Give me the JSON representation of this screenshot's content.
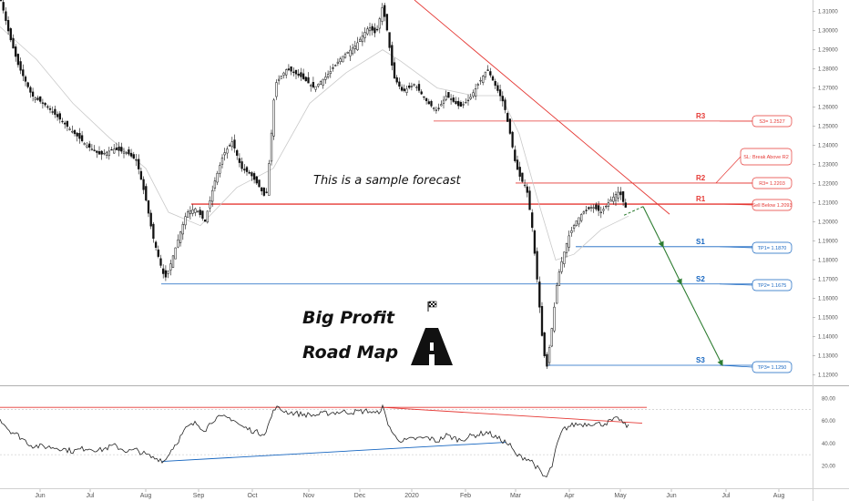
{
  "chart_data": {
    "type": "candlestick",
    "x_axis": {
      "tick_labels": [
        "Jun",
        "Jul",
        "Aug",
        "Sep",
        "Oct",
        "Nov",
        "Dec",
        "2020",
        "Feb",
        "Mar",
        "Apr",
        "May",
        "Jun",
        "Jul",
        "Aug"
      ]
    },
    "price_axis": {
      "ylim": [
        1.115,
        1.316
      ],
      "tick_labels": [
        "1.31000",
        "1.30000",
        "1.29000",
        "1.28000",
        "1.27000",
        "1.26000",
        "1.25000",
        "1.24000",
        "1.23000",
        "1.22000",
        "1.21000",
        "1.20000",
        "1.19000",
        "1.18000",
        "1.17000",
        "1.16000",
        "1.15000",
        "1.14000",
        "1.13000",
        "1.12000"
      ]
    },
    "oscillator_axis": {
      "ylim": [
        5,
        90
      ],
      "tick_labels": [
        "80.00",
        "60.00",
        "40.00",
        "20.00"
      ],
      "reference_levels": [
        70,
        30
      ]
    },
    "price_path": [
      [
        0,
        1.318
      ],
      [
        10,
        1.298
      ],
      [
        20,
        1.282
      ],
      [
        35,
        1.266
      ],
      [
        50,
        1.261
      ],
      [
        65,
        1.254
      ],
      [
        80,
        1.247
      ],
      [
        95,
        1.24
      ],
      [
        110,
        1.235
      ],
      [
        125,
        1.238
      ],
      [
        140,
        1.236
      ],
      [
        150,
        1.232
      ],
      [
        160,
        1.212
      ],
      [
        168,
        1.192
      ],
      [
        176,
        1.178
      ],
      [
        181,
        1.17
      ],
      [
        186,
        1.176
      ],
      [
        195,
        1.19
      ],
      [
        205,
        1.205
      ],
      [
        215,
        1.207
      ],
      [
        225,
        1.2
      ],
      [
        235,
        1.22
      ],
      [
        245,
        1.235
      ],
      [
        255,
        1.242
      ],
      [
        265,
        1.228
      ],
      [
        275,
        1.225
      ],
      [
        285,
        1.218
      ],
      [
        292,
        1.212
      ],
      [
        297,
        1.24
      ],
      [
        302,
        1.272
      ],
      [
        315,
        1.28
      ],
      [
        330,
        1.276
      ],
      [
        345,
        1.27
      ],
      [
        360,
        1.277
      ],
      [
        375,
        1.286
      ],
      [
        390,
        1.292
      ],
      [
        405,
        1.302
      ],
      [
        413,
        1.298
      ],
      [
        420,
        1.313
      ],
      [
        425,
        1.3
      ],
      [
        432,
        1.276
      ],
      [
        442,
        1.268
      ],
      [
        455,
        1.272
      ],
      [
        470,
        1.262
      ],
      [
        480,
        1.258
      ],
      [
        490,
        1.266
      ],
      [
        505,
        1.26
      ],
      [
        515,
        1.264
      ],
      [
        525,
        1.272
      ],
      [
        535,
        1.28
      ],
      [
        545,
        1.27
      ],
      [
        553,
        1.262
      ],
      [
        560,
        1.246
      ],
      [
        566,
        1.23
      ],
      [
        572,
        1.222
      ],
      [
        578,
        1.218
      ],
      [
        584,
        1.198
      ],
      [
        590,
        1.168
      ],
      [
        596,
        1.135
      ],
      [
        600,
        1.123
      ],
      [
        606,
        1.145
      ],
      [
        612,
        1.17
      ],
      [
        618,
        1.182
      ],
      [
        624,
        1.192
      ],
      [
        632,
        1.2
      ],
      [
        640,
        1.205
      ],
      [
        650,
        1.208
      ],
      [
        660,
        1.205
      ],
      [
        668,
        1.21
      ],
      [
        675,
        1.214
      ],
      [
        680,
        1.216
      ],
      [
        686,
        1.208
      ],
      [
        690,
        1.206
      ]
    ],
    "oscillator_path": [
      [
        0,
        62
      ],
      [
        10,
        52
      ],
      [
        20,
        47
      ],
      [
        35,
        38
      ],
      [
        50,
        37
      ],
      [
        65,
        36
      ],
      [
        80,
        33
      ],
      [
        95,
        36
      ],
      [
        110,
        34
      ],
      [
        125,
        38
      ],
      [
        140,
        33
      ],
      [
        150,
        34
      ],
      [
        160,
        30
      ],
      [
        168,
        27
      ],
      [
        176,
        26
      ],
      [
        181,
        24
      ],
      [
        186,
        32
      ],
      [
        195,
        42
      ],
      [
        205,
        54
      ],
      [
        215,
        58
      ],
      [
        225,
        52
      ],
      [
        235,
        62
      ],
      [
        245,
        63
      ],
      [
        255,
        62
      ],
      [
        265,
        55
      ],
      [
        275,
        52
      ],
      [
        285,
        49
      ],
      [
        292,
        50
      ],
      [
        297,
        62
      ],
      [
        302,
        72
      ],
      [
        315,
        68
      ],
      [
        330,
        66
      ],
      [
        345,
        65
      ],
      [
        360,
        67
      ],
      [
        375,
        68
      ],
      [
        390,
        68
      ],
      [
        405,
        69
      ],
      [
        413,
        66
      ],
      [
        420,
        72
      ],
      [
        425,
        60
      ],
      [
        432,
        47
      ],
      [
        442,
        42
      ],
      [
        455,
        44
      ],
      [
        470,
        45
      ],
      [
        480,
        42
      ],
      [
        490,
        47
      ],
      [
        505,
        43
      ],
      [
        515,
        46
      ],
      [
        525,
        48
      ],
      [
        535,
        50
      ],
      [
        545,
        45
      ],
      [
        553,
        42
      ],
      [
        560,
        38
      ],
      [
        566,
        30
      ],
      [
        572,
        28
      ],
      [
        578,
        27
      ],
      [
        584,
        24
      ],
      [
        590,
        18
      ],
      [
        596,
        11
      ],
      [
        600,
        10
      ],
      [
        606,
        20
      ],
      [
        612,
        40
      ],
      [
        618,
        52
      ],
      [
        624,
        55
      ],
      [
        632,
        57
      ],
      [
        640,
        57
      ],
      [
        650,
        58
      ],
      [
        660,
        57
      ],
      [
        668,
        59
      ],
      [
        675,
        61
      ],
      [
        680,
        62
      ],
      [
        686,
        56
      ],
      [
        690,
        55
      ]
    ],
    "ma_path": [
      [
        0,
        1.302
      ],
      [
        40,
        1.285
      ],
      [
        80,
        1.262
      ],
      [
        120,
        1.244
      ],
      [
        160,
        1.228
      ],
      [
        185,
        1.205
      ],
      [
        220,
        1.198
      ],
      [
        260,
        1.218
      ],
      [
        300,
        1.228
      ],
      [
        340,
        1.262
      ],
      [
        380,
        1.278
      ],
      [
        420,
        1.29
      ],
      [
        440,
        1.284
      ],
      [
        480,
        1.27
      ],
      [
        520,
        1.266
      ],
      [
        550,
        1.266
      ],
      [
        570,
        1.246
      ],
      [
        590,
        1.212
      ],
      [
        610,
        1.18
      ],
      [
        630,
        1.183
      ],
      [
        660,
        1.196
      ],
      [
        690,
        1.203
      ]
    ],
    "levels": [
      {
        "name": "R3",
        "value": 1.2527,
        "color": "#e53935",
        "label": "S3= 1.2527",
        "x_start": 476
      },
      {
        "name": "R2",
        "value": 1.2203,
        "color": "#e53935",
        "label": "R3= 1.2203",
        "x_start": 566
      },
      {
        "name": "R1",
        "value": 1.2093,
        "color": "#e53935",
        "label": "Sell Below 1.2093",
        "x_start": 210,
        "emphasis": true
      },
      {
        "name": "S1",
        "value": 1.187,
        "color": "#1565c0",
        "label": "TP1= 1.1870",
        "x_start": 632
      },
      {
        "name": "S2",
        "value": 1.1675,
        "color": "#1565c0",
        "label": "TP2= 1.1675",
        "x_start": 177
      },
      {
        "name": "S3",
        "value": 1.125,
        "color": "#1565c0",
        "label": "TP3= 1.1250",
        "x_start": 600
      }
    ],
    "callouts": [
      {
        "text": "SL: Break Above R2",
        "color": "#e53935"
      }
    ],
    "trendlines": [
      {
        "panel": "price",
        "color": "#e53935",
        "from": [
          455,
          1.316
        ],
        "to": [
          735,
          1.204
        ]
      },
      {
        "panel": "oscillator",
        "color": "#e53935",
        "from": [
          420,
          72
        ],
        "to": [
          705,
          58
        ]
      },
      {
        "panel": "oscillator",
        "color": "#1565c0",
        "from": [
          178,
          24
        ],
        "to": [
          555,
          41
        ]
      },
      {
        "panel": "oscillator",
        "color": "#e53935",
        "from": [
          0,
          72
        ],
        "to": [
          710,
          72
        ]
      }
    ],
    "forecast_path": [
      [
        706,
        1.208
      ],
      [
        728,
        1.187
      ],
      [
        748,
        1.1675
      ],
      [
        793,
        1.125
      ]
    ],
    "annotations": [
      "This is a sample forecast"
    ]
  },
  "branding": {
    "line1": "Big Profit",
    "line2": "Road Map"
  },
  "colors": {
    "resistance": "#e53935",
    "support": "#1565c0",
    "forecast": "#2e7d32",
    "candle": "#111111",
    "oscillator_line": "#222222"
  }
}
